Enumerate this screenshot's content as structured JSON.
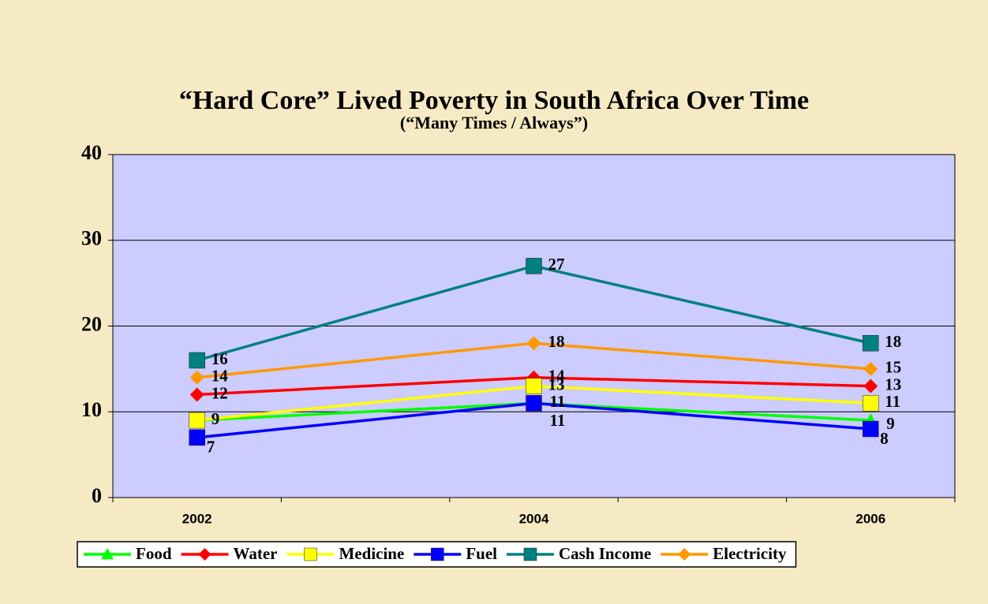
{
  "chart_data": {
    "type": "line",
    "title": "“Hard Core” Lived Poverty in South Africa Over Time",
    "subtitle": "(“Many Times / Always”)",
    "x": [
      2002,
      2004,
      2006
    ],
    "xlim": [
      2001.5,
      2006.5
    ],
    "xticks": [
      2002,
      2004,
      2006
    ],
    "ylim": [
      0,
      40
    ],
    "yticks": [
      0,
      10,
      20,
      30,
      40
    ],
    "grid": true,
    "legend": "bottom",
    "series": [
      {
        "name": "Food",
        "color": "#00ff00",
        "marker": "triangle",
        "values": [
          9,
          11,
          9
        ],
        "value_labels": [
          null,
          "11",
          "9"
        ]
      },
      {
        "name": "Water",
        "color": "#ff0000",
        "marker": "diamond",
        "values": [
          12,
          14,
          13
        ],
        "value_labels": [
          "12",
          "14",
          "13"
        ]
      },
      {
        "name": "Medicine",
        "color": "#ffff00",
        "marker": "square",
        "values": [
          9,
          13,
          11
        ],
        "value_labels": [
          "9",
          "13",
          "11"
        ]
      },
      {
        "name": "Fuel",
        "color": "#0000ff",
        "marker": "square",
        "values": [
          7,
          11,
          8
        ],
        "value_labels": [
          "7",
          "11",
          "8"
        ]
      },
      {
        "name": "Cash Income",
        "color": "#008080",
        "marker": "square",
        "values": [
          16,
          27,
          18
        ],
        "value_labels": [
          "16",
          "27",
          "18"
        ]
      },
      {
        "name": "Electricity",
        "color": "#ff9900",
        "marker": "diamond",
        "values": [
          14,
          18,
          15
        ],
        "value_labels": [
          "14",
          "18",
          "15"
        ]
      }
    ]
  }
}
